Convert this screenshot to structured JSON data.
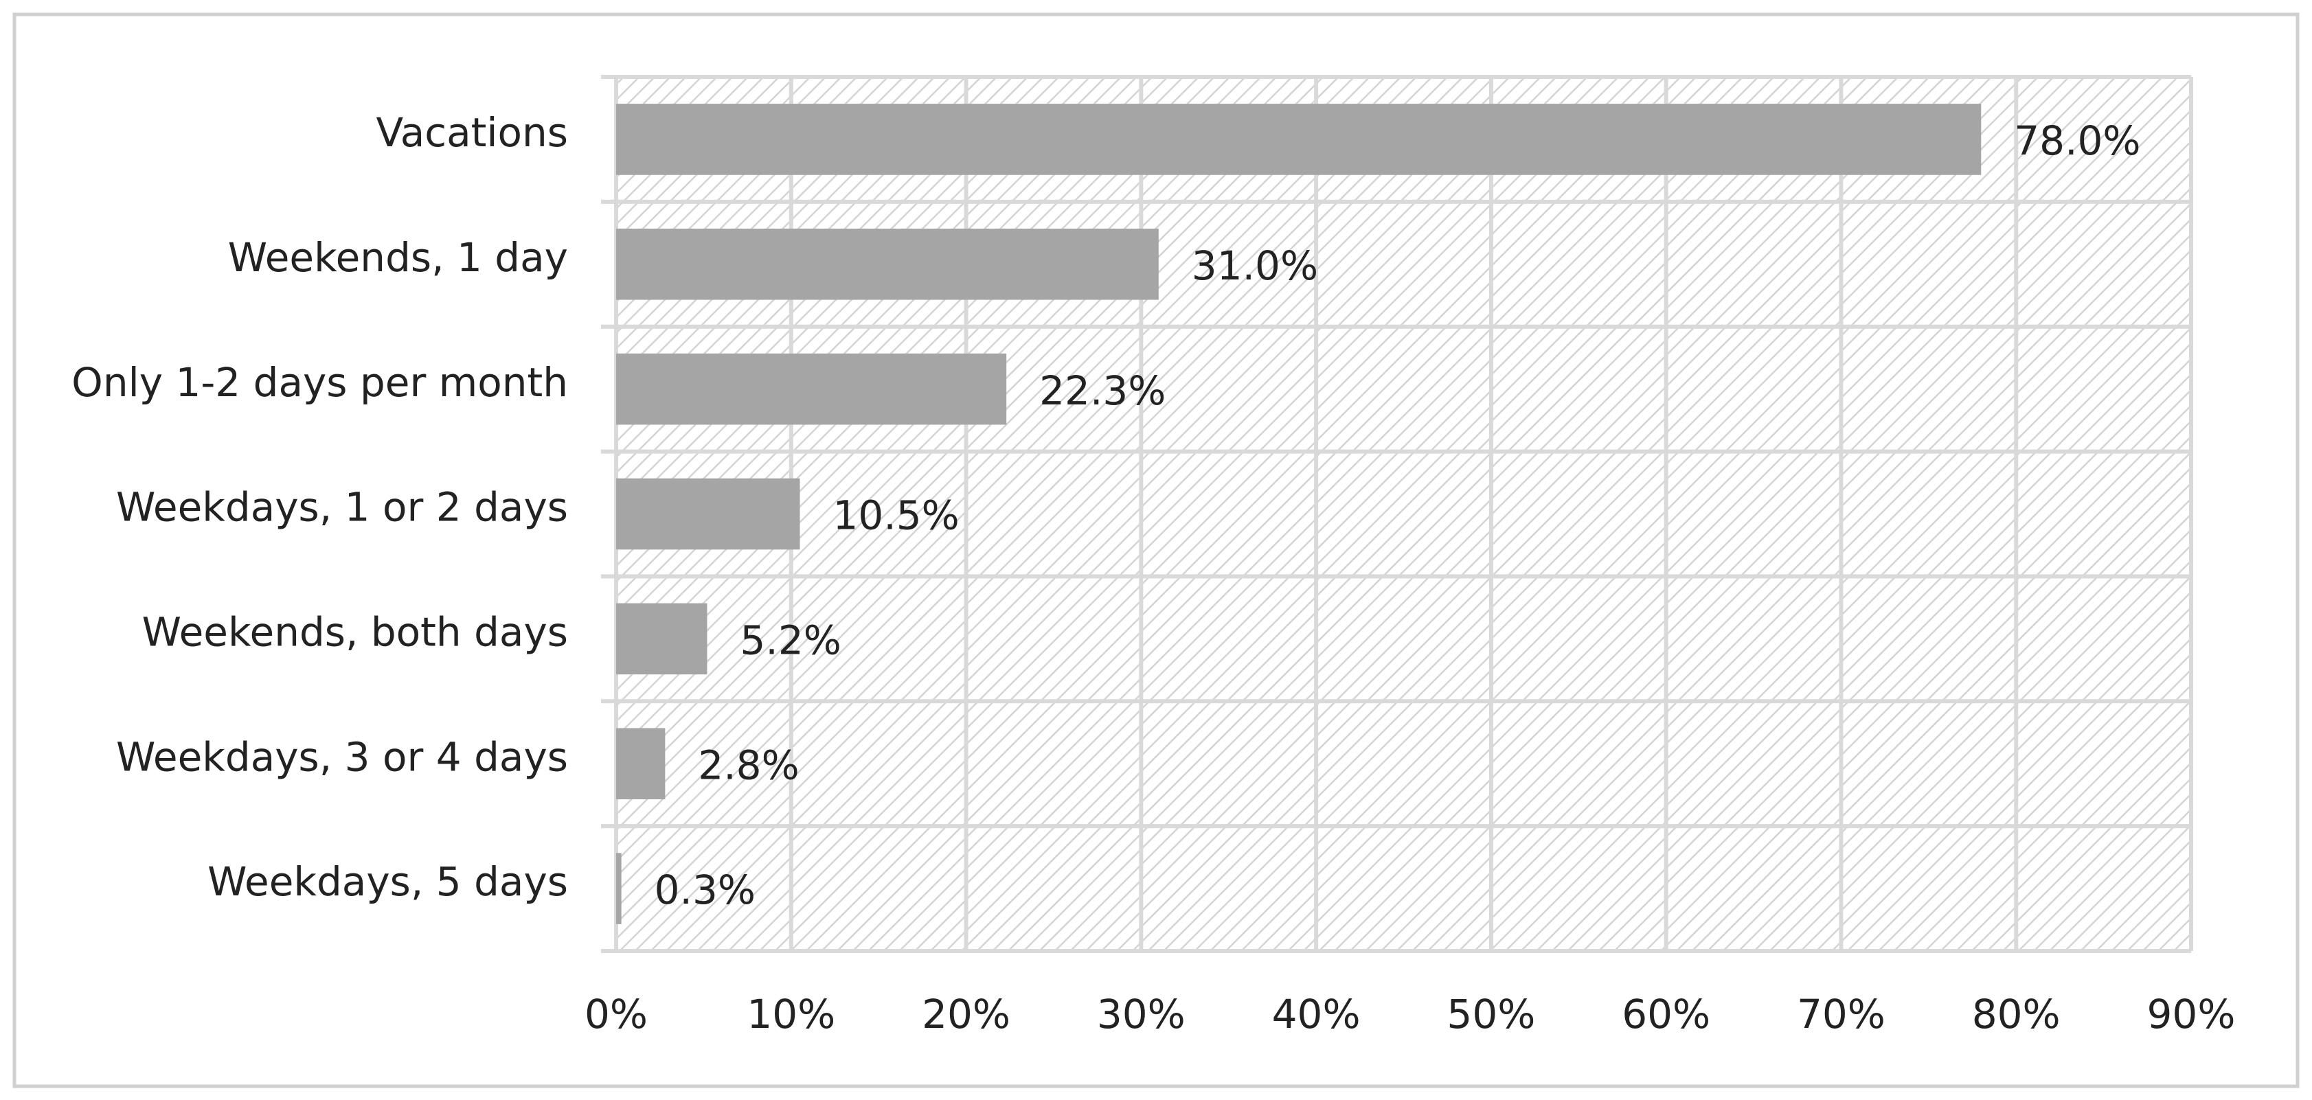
{
  "chart_data": {
    "type": "hbar",
    "categories": [
      "Vacations",
      "Weekends, 1 day",
      "Only 1-2 days per month",
      "Weekdays, 1 or 2 days",
      "Weekends, both days",
      "Weekdays, 3 or 4 days",
      "Weekdays, 5 days"
    ],
    "values": [
      78.0,
      31.0,
      22.3,
      10.5,
      5.2,
      2.8,
      0.3
    ],
    "value_labels": [
      "78.0%",
      "31.0%",
      "22.3%",
      "10.5%",
      "5.2%",
      "2.8%",
      "0.3%"
    ],
    "color": "#a5a5a5",
    "xlim": [
      0,
      90
    ],
    "xticks": [
      {
        "value": 0,
        "label": "0%"
      },
      {
        "value": 10,
        "label": "10%"
      },
      {
        "value": 20,
        "label": "20%"
      },
      {
        "value": 30,
        "label": "30%"
      },
      {
        "value": 40,
        "label": "40%"
      },
      {
        "value": 50,
        "label": "50%"
      },
      {
        "value": 60,
        "label": "60%"
      },
      {
        "value": 70,
        "label": "70%"
      },
      {
        "value": 80,
        "label": "80%"
      },
      {
        "value": 90,
        "label": "90%"
      }
    ],
    "grid": true
  }
}
